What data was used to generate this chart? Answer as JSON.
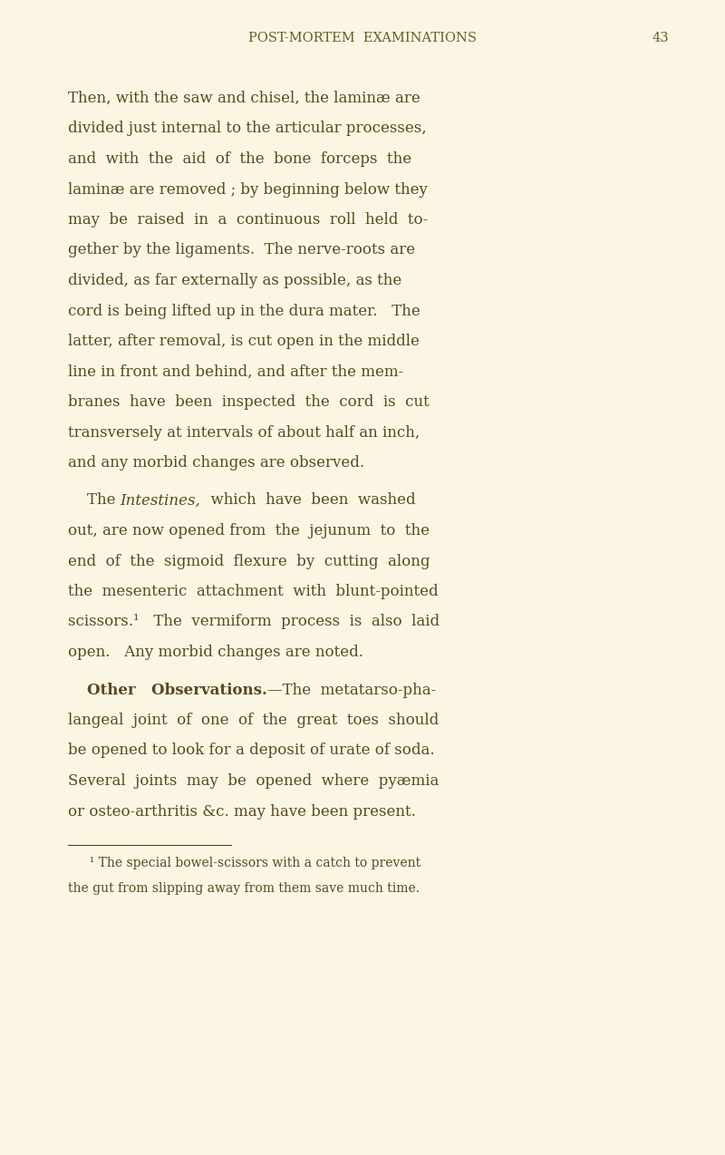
{
  "page_bg": "#faf6e3",
  "text_color": "#5a4820",
  "header_color": "#6b5a2a",
  "title": "POST-MORTEM  EXAMINATIONS",
  "page_number": "43",
  "title_fontsize": 10.5,
  "body_fontsize": 12.0,
  "footnote_fontsize": 10.0,
  "p1_lines": [
    "Then, with the saw and chisel, the laminæ are",
    "divided just internal to the articular processes,",
    "and  with  the  aid  of  the  bone  forceps  the",
    "laminæ are removed ; by beginning below they",
    "may  be  raised  in  a  continuous  roll  held  to-",
    "gether by the ligaments.  The nerve-roots are",
    "divided, as far externally as possible, as the",
    "cord is being lifted up in the dura mater.   The",
    "latter, after removal, is cut open in the middle",
    "line in front and behind, and after the mem-",
    "branes  have  been  inspected  the  cord  is  cut",
    "transversely at intervals of about half an inch,",
    "and any morbid changes are observed."
  ],
  "p2_line1_pre": "    The ",
  "p2_line1_italic": "Intestines,",
  "p2_line1_post": "  which  have  been  washed",
  "p2_lines_rest": [
    "out, are now opened from  the  jejunum  to  the",
    "end  of  the  sigmoid  flexure  by  cutting  along",
    "the  mesenteric  attachment  with  blunt-pointed",
    "scissors.¹   The  vermiform  process  is  also  laid",
    "open.   Any morbid changes are noted."
  ],
  "p3_line1_pre": "    ",
  "p3_line1_bold": "Other   Observations.",
  "p3_line1_post": "—The  metatarso-pha-",
  "p3_lines_rest": [
    "langeal  joint  of  one  of  the  great  toes  should",
    "be opened to look for a deposit of urate of soda.",
    "Several  joints  may  be  opened  where  pyæmia",
    "or osteo-arthritis &c. may have been present."
  ],
  "footnote_line1": "  ¹ The special bowel-scissors with a catch to prevent",
  "footnote_line2": "the gut from slipping away from them save much time."
}
